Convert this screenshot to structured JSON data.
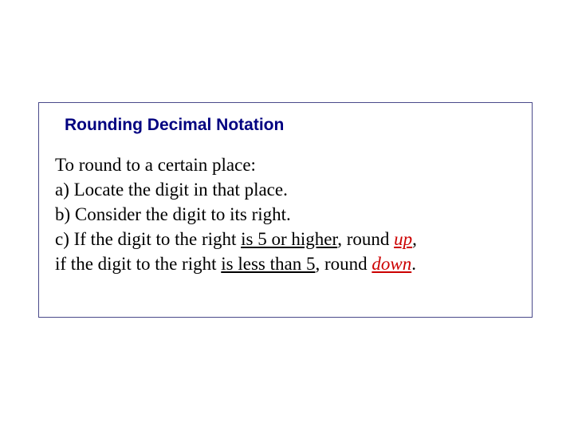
{
  "box": {
    "border_color": "#4a4a8a",
    "background_color": "#ffffff"
  },
  "heading": {
    "text": "Rounding Decimal Notation",
    "color": "#000080",
    "font_family": "Arial",
    "font_size": 21,
    "font_weight": "bold"
  },
  "body": {
    "font_family": "Times New Roman",
    "font_size": 23,
    "color": "#000000",
    "intro": "To round to a certain place:",
    "item_a": "a)  Locate the digit in that place.",
    "item_b": "b)  Consider the digit to its right.",
    "item_c_prefix": "c)  If the digit to the right ",
    "item_c_underline1": "is 5 or higher",
    "item_c_mid1": ", round ",
    "item_c_up": "up",
    "item_c_comma": ",",
    "item_c_line2_prefix": "if the digit to the right ",
    "item_c_underline2": "is less than 5",
    "item_c_mid2": ", round ",
    "item_c_down": "down",
    "item_c_period": ".",
    "emphasis_color": "#cc0000"
  }
}
